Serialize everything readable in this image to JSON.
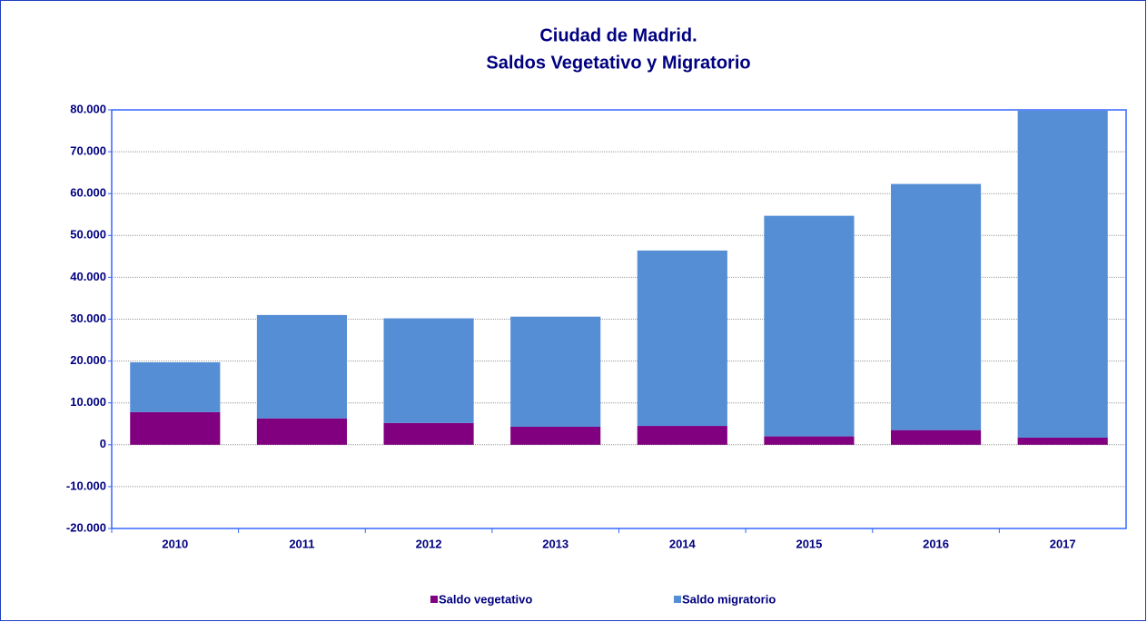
{
  "chart_data": {
    "type": "stacked_bar",
    "title": "Ciudad de Madrid.",
    "subtitle": "Saldos Vegetativo y Migratorio",
    "categories": [
      "2010",
      "2011",
      "2012",
      "2013",
      "2014",
      "2015",
      "2016",
      "2017"
    ],
    "series": [
      {
        "name": "Saldo vegetativo",
        "color": "#800080",
        "values": [
          7800,
          6300,
          5200,
          4300,
          4500,
          2000,
          3500,
          1700
        ]
      },
      {
        "name": "Saldo migratorio",
        "color": "#558ed5",
        "values": [
          11900,
          24700,
          25000,
          26300,
          41900,
          52700,
          58800,
          78100
        ]
      }
    ],
    "ylim": [
      -20000,
      80000
    ],
    "yticks": [
      {
        "value": -20000,
        "label": "-20.000"
      },
      {
        "value": -10000,
        "label": "-10.000"
      },
      0,
      {
        "value": 10000,
        "label": "10.000"
      },
      {
        "value": 20000,
        "label": "20.000"
      },
      {
        "value": 30000,
        "label": "30.000"
      },
      {
        "value": 40000,
        "label": "40.000"
      },
      {
        "value": 50000,
        "label": "50.000"
      },
      {
        "value": 60000,
        "label": "60.000"
      },
      {
        "value": 70000,
        "label": "70.000"
      },
      {
        "value": 80000,
        "label": "80.000"
      }
    ],
    "grid": true,
    "legend": "bottom"
  }
}
